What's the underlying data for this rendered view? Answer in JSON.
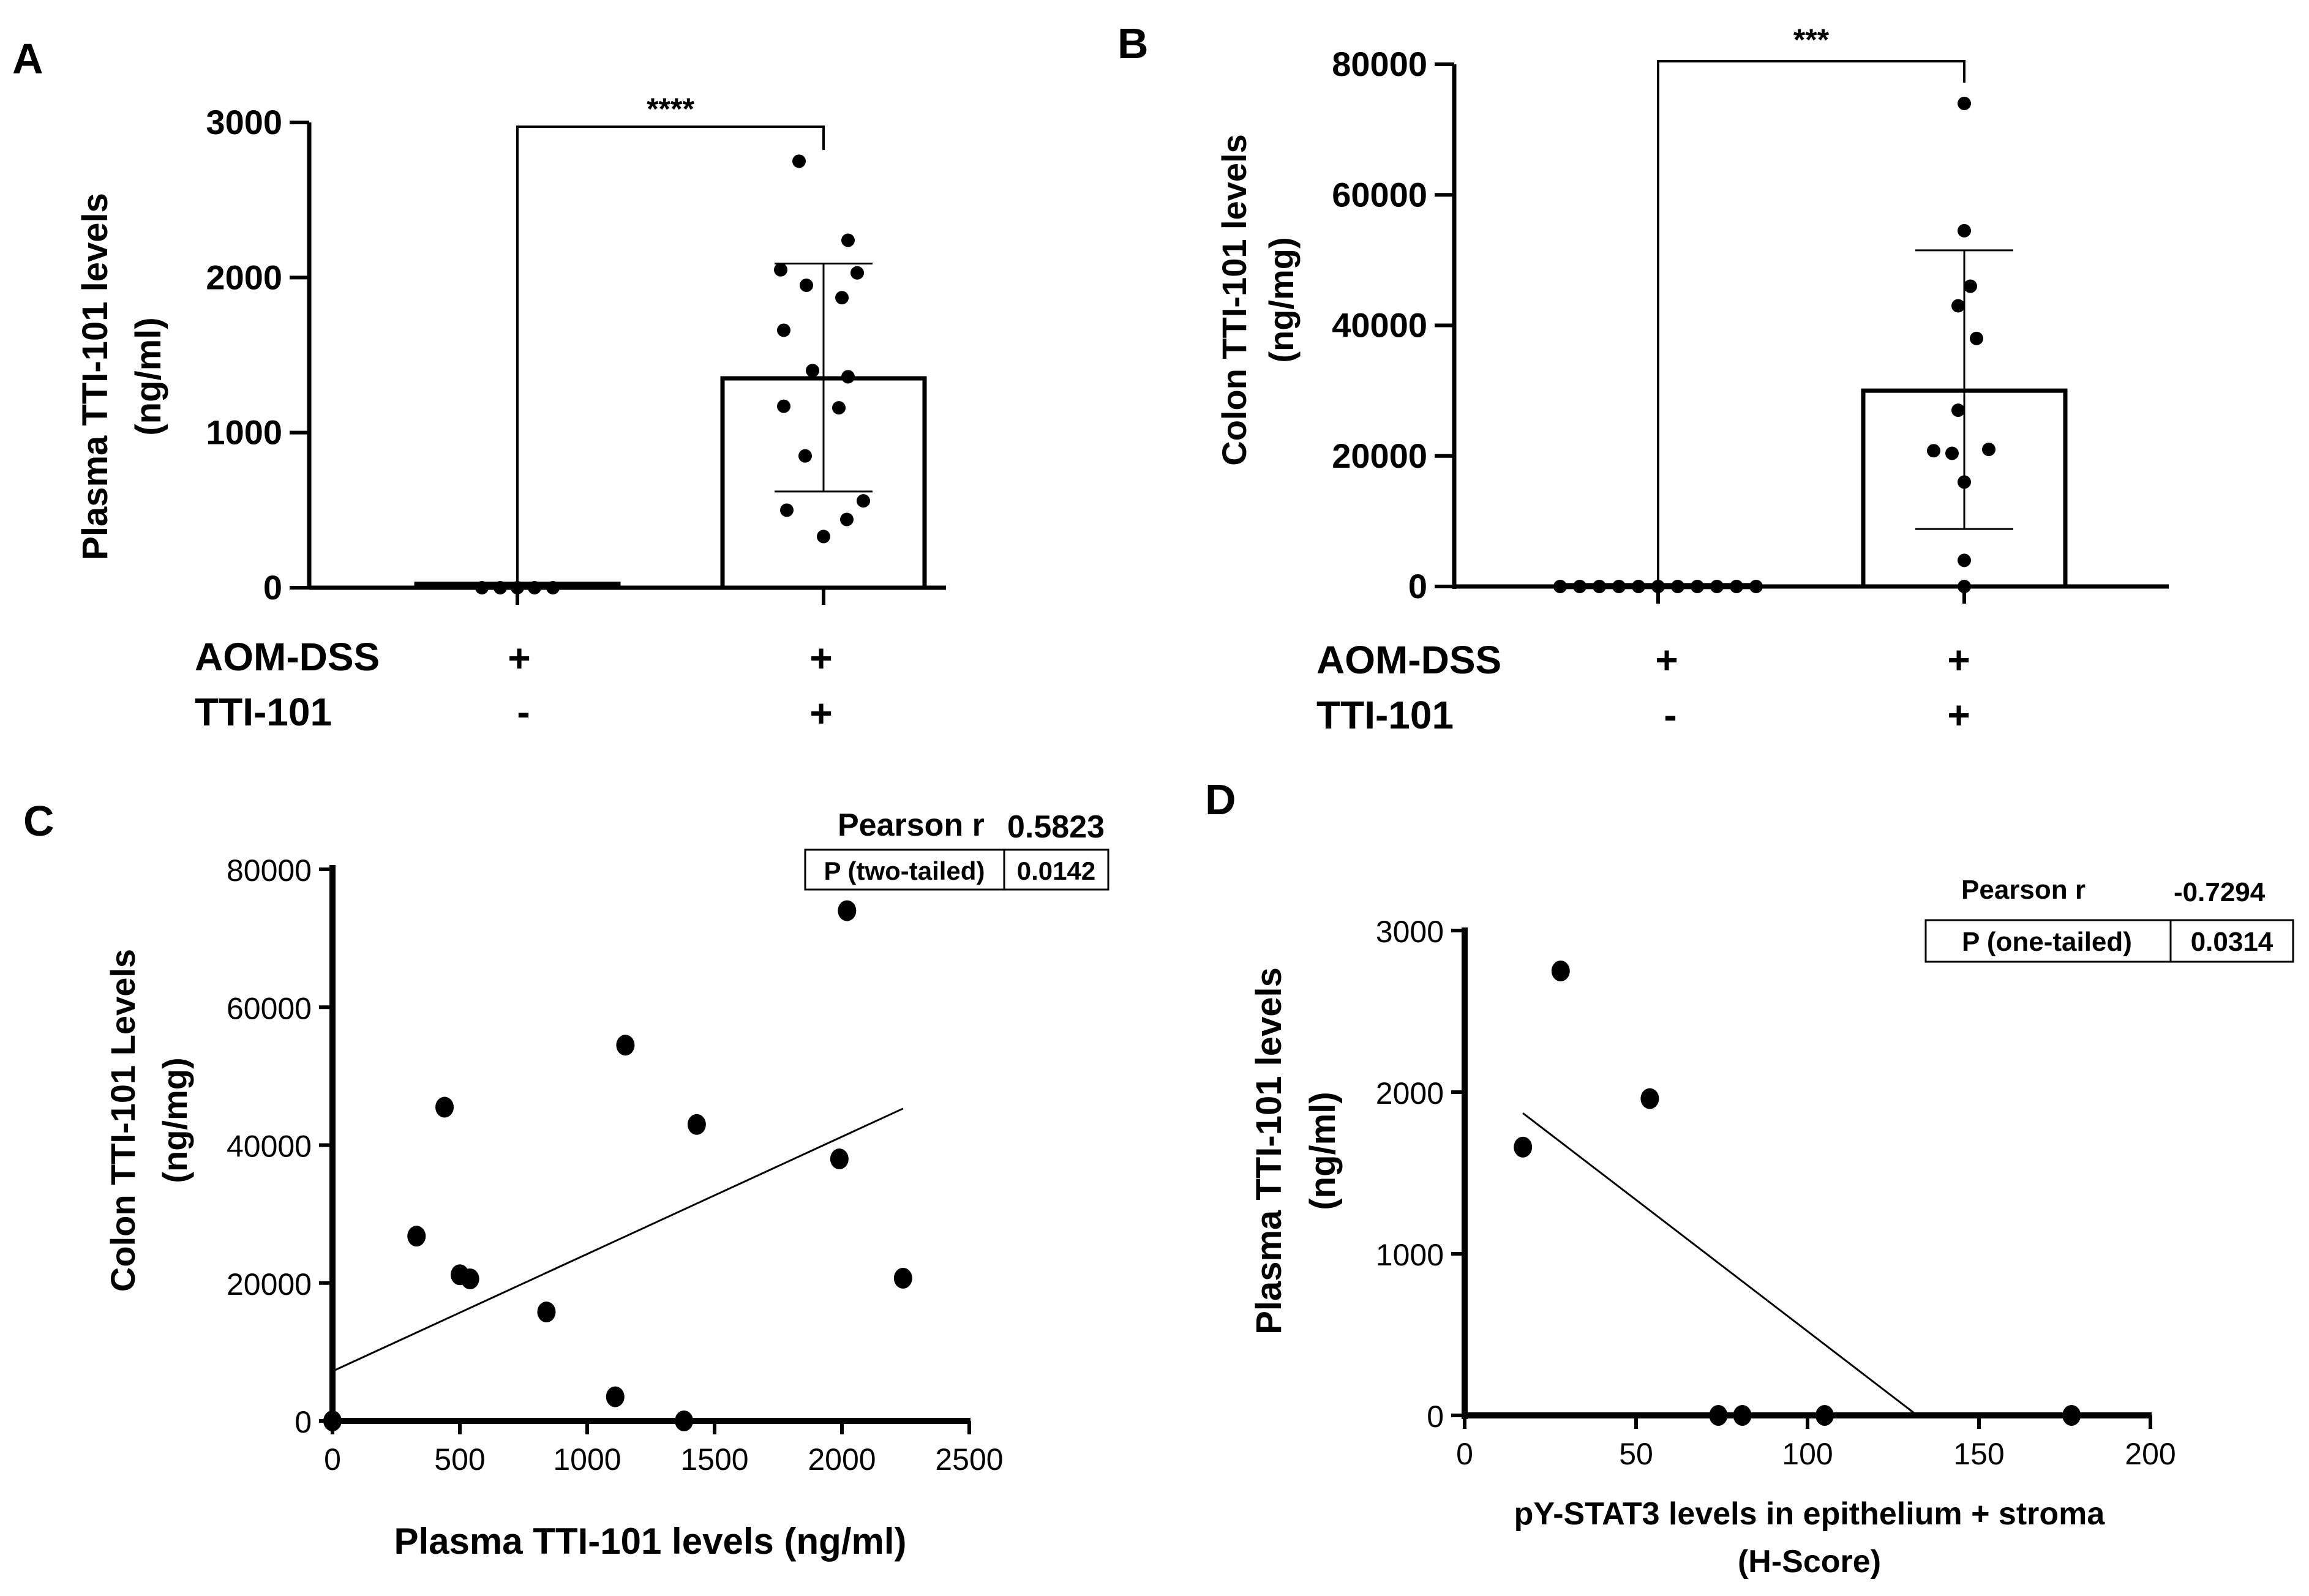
{
  "panels": {
    "A": {
      "letter": "A"
    },
    "B": {
      "letter": "B"
    },
    "C": {
      "letter": "C"
    },
    "D": {
      "letter": "D"
    }
  },
  "chart_data": [
    {
      "id": "A",
      "type": "bar",
      "ylabel_line1": "Plasma TTI-101 levels",
      "ylabel_line2": "(ng/ml)",
      "ylim": [
        0,
        3000
      ],
      "yticks": [
        0,
        1000,
        2000,
        3000
      ],
      "ytick_labels": [
        "0",
        "1000",
        "2000",
        "3000"
      ],
      "groups": [
        {
          "mean": 25,
          "sd_low": null,
          "sd_high": null,
          "points": [
            0,
            0,
            0,
            0,
            0
          ]
        },
        {
          "mean": 1350,
          "sd_low": 620,
          "sd_high": 2090,
          "points": [
            2750,
            2240,
            2050,
            2030,
            1950,
            1870,
            1660,
            1400,
            1360,
            1170,
            1160,
            850,
            560,
            500,
            440,
            330
          ]
        }
      ],
      "significance": "****",
      "conditions": [
        {
          "label": "AOM-DSS",
          "values": [
            "+",
            "+"
          ]
        },
        {
          "label": "TTI-101",
          "values": [
            "-",
            "+"
          ]
        }
      ]
    },
    {
      "id": "B",
      "type": "bar",
      "ylabel_line1": "Colon TTI-101 levels",
      "ylabel_line2": "(ng/mg)",
      "ylim": [
        0,
        80000
      ],
      "yticks": [
        0,
        20000,
        40000,
        60000,
        80000
      ],
      "ytick_labels": [
        "0",
        "20000",
        "40000",
        "60000",
        "80000"
      ],
      "groups": [
        {
          "mean": 200,
          "sd_low": null,
          "sd_high": null,
          "points": [
            0,
            0,
            0,
            0,
            0,
            0,
            0,
            0,
            0,
            0,
            0
          ]
        },
        {
          "mean": 30000,
          "sd_low": 8800,
          "sd_high": 51500,
          "points": [
            74000,
            54500,
            46000,
            43000,
            38000,
            27000,
            21000,
            20800,
            20400,
            16000,
            4000,
            0
          ]
        }
      ],
      "significance": "***",
      "conditions": [
        {
          "label": "AOM-DSS",
          "values": [
            "+",
            "+"
          ]
        },
        {
          "label": "TTI-101",
          "values": [
            "-",
            "+"
          ]
        }
      ]
    },
    {
      "id": "C",
      "type": "scatter",
      "xlabel": "Plasma TTI-101 levels (ng/ml)",
      "ylabel_line1": "Colon TTI-101 Levels",
      "ylabel_line2": "(ng/mg)",
      "xlim": [
        0,
        2500
      ],
      "ylim": [
        0,
        80000
      ],
      "xticks": [
        0,
        500,
        1000,
        1500,
        2000,
        2500
      ],
      "xtick_labels": [
        "0",
        "500",
        "1000",
        "1500",
        "2000",
        "2500"
      ],
      "yticks": [
        0,
        20000,
        40000,
        60000,
        80000
      ],
      "ytick_labels": [
        "0",
        "20000",
        "40000",
        "60000",
        "80000"
      ],
      "x": [
        0,
        330,
        440,
        500,
        540,
        840,
        1110,
        1150,
        1380,
        1430,
        1990,
        2020,
        2240
      ],
      "y": [
        0,
        26800,
        45500,
        21200,
        20600,
        15800,
        3500,
        54500,
        0,
        43000,
        38000,
        74000,
        20700
      ],
      "fit_line": {
        "x": [
          0,
          2240
        ],
        "y": [
          7200,
          45300
        ]
      },
      "stats": {
        "pearson_label": "Pearson r",
        "pearson_value": "0.5823",
        "p_label": "P (two-tailed)",
        "p_value": "0.0142"
      }
    },
    {
      "id": "D",
      "type": "scatter",
      "xlabel_line1": "pY-STAT3 levels in epithelium + stroma",
      "xlabel_line2": "(H-Score)",
      "ylabel_line1": "Plasma TTI-101 levels",
      "ylabel_line2": "(ng/ml)",
      "xlim": [
        0,
        200
      ],
      "ylim": [
        0,
        3000
      ],
      "xticks": [
        0,
        50,
        100,
        150,
        200
      ],
      "xtick_labels": [
        "0",
        "50",
        "100",
        "150",
        "200"
      ],
      "yticks": [
        0,
        1000,
        2000,
        3000
      ],
      "ytick_labels": [
        "0",
        "1000",
        "2000",
        "3000"
      ],
      "x": [
        17,
        28,
        54,
        74,
        81,
        105,
        177
      ],
      "y": [
        1660,
        2750,
        1960,
        0,
        0,
        0,
        0
      ],
      "fit_line": {
        "x": [
          17,
          132
        ],
        "y": [
          1870,
          0
        ]
      },
      "stats": {
        "pearson_label": "Pearson r",
        "pearson_value": "-0.7294",
        "p_label": "P (one-tailed)",
        "p_value": "0.0314"
      }
    }
  ]
}
